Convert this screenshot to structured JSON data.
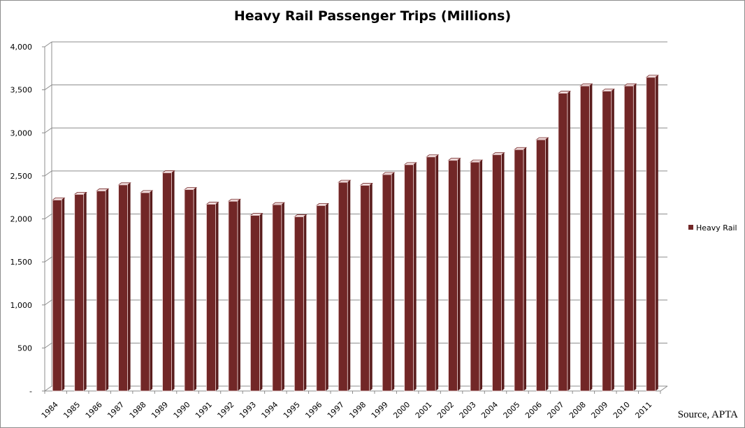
{
  "chart_data": {
    "type": "bar",
    "title": "Heavy Rail Passenger Trips (Millions)",
    "categories": [
      "1984",
      "1985",
      "1986",
      "1987",
      "1988",
      "1989",
      "1990",
      "1991",
      "1992",
      "1993",
      "1994",
      "1995",
      "1996",
      "1997",
      "1998",
      "1999",
      "2000",
      "2001",
      "2002",
      "2003",
      "2004",
      "2005",
      "2006",
      "2007",
      "2008",
      "2009",
      "2010",
      "2011"
    ],
    "series": [
      {
        "name": "Heavy Rail",
        "values": [
          2220,
          2285,
          2325,
          2395,
          2305,
          2535,
          2340,
          2170,
          2205,
          2040,
          2165,
          2025,
          2155,
          2425,
          2390,
          2515,
          2630,
          2720,
          2680,
          2660,
          2745,
          2805,
          2920,
          3460,
          3545,
          3485,
          3545,
          3645
        ]
      }
    ],
    "yticks": [
      "-",
      "500",
      "1,000",
      "1,500",
      "2,000",
      "2,500",
      "3,000",
      "3,500",
      "4,000"
    ],
    "ylim": [
      0,
      4000
    ],
    "grid": true,
    "legend_position": "right",
    "colors": {
      "bar": "#722727",
      "bar_top": "#5a1c1c",
      "bar_highlight": "#f2dede",
      "grid": "#8c8c8c"
    }
  },
  "source_note": "Source, APTA"
}
